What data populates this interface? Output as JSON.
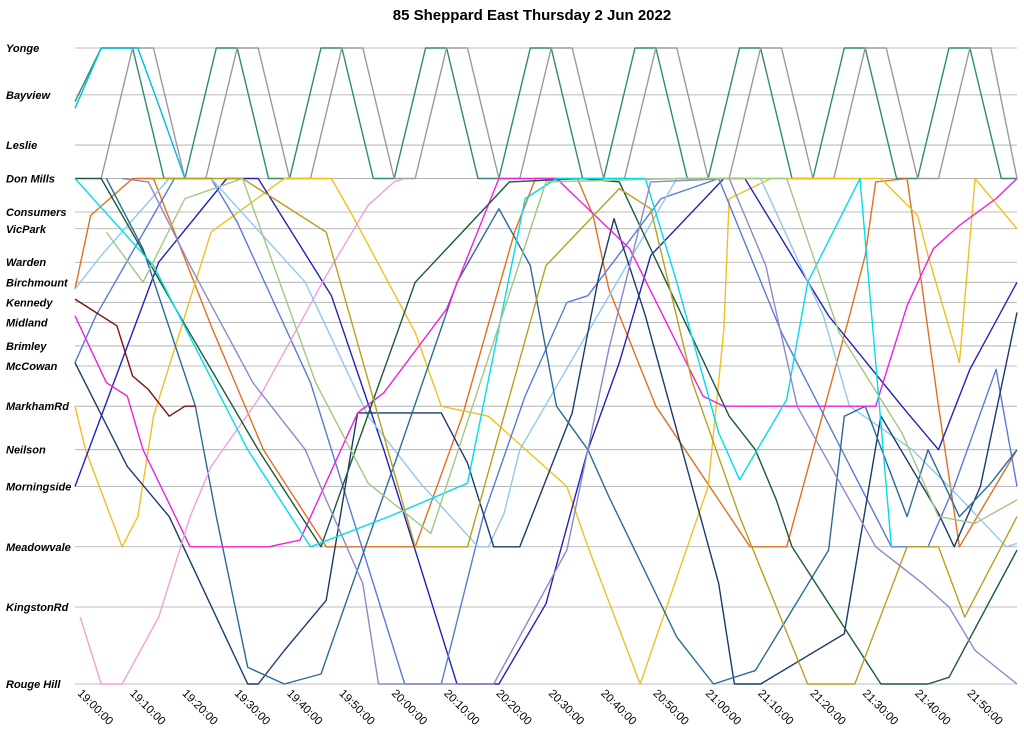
{
  "chart_data": {
    "type": "line",
    "title": "85 Sheppard East Thursday 2 Jun 2022",
    "xlabel": "",
    "ylabel": "",
    "x_range_minutes": [
      1140,
      1320
    ],
    "x_ticks": [
      "19:00:00",
      "19:10:00",
      "19:20:00",
      "19:30:00",
      "19:40:00",
      "19:50:00",
      "20:00:00",
      "20:10:00",
      "20:20:00",
      "20:30:00",
      "20:40:00",
      "20:50:00",
      "21:00:00",
      "21:10:00",
      "21:20:00",
      "21:30:00",
      "21:40:00",
      "21:50:00"
    ],
    "stops": [
      "Yonge",
      "Bayview",
      "Leslie",
      "Don Mills",
      "Consumers",
      "VicPark",
      "Warden",
      "Birchmount",
      "Kennedy",
      "Midland",
      "Brimley",
      "McCowan",
      "MarkhamRd",
      "Neilson",
      "Morningside",
      "Meadowvale",
      "KingstonRd",
      "Rouge Hill"
    ],
    "stop_km": [
      0,
      1.4,
      2.9,
      3.9,
      4.9,
      5.4,
      6.4,
      7.0,
      7.6,
      8.2,
      8.9,
      9.5,
      10.7,
      12.0,
      13.1,
      14.9,
      16.7,
      19.0
    ],
    "grid": true,
    "legend": "none",
    "series": [
      {
        "color": "#2e8b6e",
        "x": [
          1139,
          1145,
          1151,
          1157,
          1161,
          1167,
          1171,
          1177,
          1181,
          1187,
          1191,
          1197,
          1201,
          1207,
          1211,
          1217,
          1221,
          1227,
          1231,
          1237,
          1241,
          1247,
          1251,
          1257,
          1261,
          1267,
          1271,
          1277,
          1281,
          1287,
          1291,
          1297,
          1301,
          1307,
          1311,
          1317,
          1321
        ],
        "y": [
          1.6,
          0,
          0,
          3.9,
          3.9,
          0,
          0,
          3.9,
          3.9,
          0,
          0,
          3.9,
          3.9,
          0,
          0,
          3.9,
          3.9,
          0,
          0,
          3.9,
          3.9,
          0,
          0,
          3.9,
          3.9,
          0,
          0,
          3.9,
          3.9,
          0,
          0,
          3.9,
          3.9,
          0,
          0,
          3.9,
          3.9
        ]
      },
      {
        "color": "#9a9a9a",
        "x": [
          1145,
          1151,
          1155,
          1161,
          1165,
          1171,
          1175,
          1181,
          1185,
          1191,
          1195,
          1201,
          1205,
          1211,
          1215,
          1221,
          1225,
          1231,
          1235,
          1241,
          1245,
          1251,
          1255,
          1261,
          1265,
          1271,
          1275,
          1281,
          1285,
          1291,
          1295,
          1301,
          1305,
          1311,
          1315,
          1321
        ],
        "y": [
          3.9,
          0,
          0,
          3.9,
          3.9,
          0,
          0,
          3.9,
          3.9,
          0,
          0,
          3.9,
          3.9,
          0,
          0,
          3.9,
          3.9,
          0,
          0,
          3.9,
          3.9,
          0,
          0,
          3.9,
          3.9,
          0,
          0,
          3.9,
          3.9,
          0,
          0,
          3.9,
          3.9,
          0,
          0,
          3.9
        ]
      },
      {
        "color": "#00bcd8",
        "x": [
          1140,
          1145,
          1152,
          1156,
          1161
        ],
        "y": [
          1.8,
          0,
          0,
          1.7,
          3.9
        ]
      },
      {
        "color": "#e07020",
        "x": [
          1140,
          1143,
          1151,
          1155,
          1166,
          1176,
          1188,
          1205,
          1214,
          1224,
          1228,
          1236,
          1239,
          1242,
          1251,
          1269,
          1276,
          1288,
          1291,
          1293,
          1299,
          1305,
          1309,
          1321
        ],
        "y": [
          7.2,
          5.0,
          3.9,
          3.9,
          8.3,
          12.0,
          14.9,
          14.9,
          11.0,
          5.5,
          3.9,
          3.9,
          5.0,
          7.2,
          10.7,
          14.9,
          14.9,
          8.0,
          6.2,
          4.0,
          3.9,
          10.7,
          14.9,
          12.0
        ]
      },
      {
        "color": "#f0c020",
        "x": [
          1140,
          1142,
          1149,
          1152,
          1155,
          1166,
          1180,
          1189,
          1193,
          1205,
          1210,
          1219,
          1234,
          1238,
          1248,
          1257,
          1261,
          1264,
          1265,
          1273,
          1294,
          1301,
          1303,
          1309,
          1312,
          1321
        ],
        "y": [
          10.7,
          12.0,
          14.9,
          14.0,
          11.0,
          5.5,
          3.9,
          3.9,
          5.0,
          8.5,
          10.7,
          11.0,
          13.1,
          14.9,
          19.0,
          14.9,
          13.1,
          8.4,
          4.5,
          3.9,
          3.9,
          5.0,
          6.2,
          9.4,
          3.9,
          5.4
        ]
      },
      {
        "color": "#2222bb",
        "x": [
          1140,
          1156,
          1169,
          1175,
          1189,
          1199,
          1213,
          1221,
          1230,
          1238,
          1244,
          1250,
          1264,
          1268,
          1284,
          1298,
          1305,
          1311,
          1321
        ],
        "y": [
          13.1,
          6.4,
          3.9,
          3.9,
          7.4,
          12.0,
          19.0,
          19.0,
          16.6,
          12.0,
          9.4,
          6.2,
          3.9,
          3.9,
          8.0,
          10.7,
          12.0,
          9.6,
          7.0
        ]
      },
      {
        "color": "#5a7ad6",
        "x": [
          1140,
          1144,
          1159,
          1166,
          1171,
          1185,
          1203,
          1210,
          1218,
          1226,
          1234,
          1238,
          1252,
          1263,
          1275,
          1296,
          1303,
          1308,
          1316,
          1321
        ],
        "y": [
          9.4,
          8.0,
          3.9,
          3.9,
          5.2,
          10.0,
          19.0,
          19.0,
          14.0,
          10.4,
          7.6,
          7.4,
          4.5,
          3.9,
          8.5,
          14.9,
          14.9,
          13.1,
          9.6,
          13.1
        ]
      },
      {
        "color": "#90c8f0",
        "x": [
          1140,
          1145,
          1158,
          1166,
          1184,
          1196,
          1206,
          1217,
          1219,
          1222,
          1225,
          1248,
          1255,
          1271,
          1283,
          1288,
          1300,
          1307,
          1318,
          1321
        ],
        "y": [
          7.2,
          6.2,
          3.9,
          3.9,
          7.0,
          11.0,
          13.0,
          14.9,
          14.9,
          13.9,
          12.0,
          5.8,
          3.9,
          3.9,
          8.0,
          10.7,
          12.0,
          13.1,
          14.9,
          14.8
        ]
      },
      {
        "color": "#1a3a6e",
        "x": [
          1140,
          1150,
          1158,
          1164,
          1173,
          1175,
          1180,
          1188,
          1194,
          1210,
          1215,
          1220,
          1225,
          1235,
          1240,
          1243,
          1249,
          1263,
          1266,
          1271,
          1287,
          1294,
          1305,
          1308,
          1313,
          1321
        ],
        "y": [
          9.4,
          12.5,
          14.0,
          16.0,
          19.0,
          19.0,
          18.0,
          16.5,
          10.9,
          10.9,
          12.4,
          14.9,
          14.9,
          10.9,
          6.9,
          5.1,
          8.0,
          16.0,
          19.0,
          19.0,
          17.5,
          11.0,
          13.9,
          14.9,
          13.1,
          7.9
        ]
      },
      {
        "color": "#2a6a9a",
        "x": [
          1146,
          1153,
          1163,
          1167,
          1173,
          1180,
          1187,
          1202,
          1213,
          1221,
          1227,
          1232,
          1238,
          1242,
          1255,
          1262,
          1270,
          1284,
          1287,
          1291,
          1299,
          1303,
          1309,
          1315,
          1321
        ],
        "y": [
          3.9,
          6.0,
          10.7,
          14.0,
          18.5,
          19.0,
          18.7,
          12.0,
          7.0,
          4.8,
          6.5,
          10.7,
          12.0,
          13.4,
          17.6,
          19.0,
          18.6,
          15.0,
          11.0,
          10.7,
          14.0,
          12.0,
          14.0,
          13.0,
          12.0
        ]
      },
      {
        "color": "#ee22dd",
        "x": [
          1140,
          1146,
          1150,
          1153,
          1162,
          1166,
          1171,
          1177,
          1183,
          1194,
          1199,
          1211,
          1221,
          1232,
          1246,
          1260,
          1264,
          1270,
          1277,
          1286,
          1293,
          1299,
          1304,
          1309,
          1316,
          1321
        ],
        "y": [
          8.0,
          10.0,
          10.4,
          12.0,
          14.9,
          14.9,
          14.9,
          14.9,
          14.7,
          10.9,
          10.3,
          7.8,
          3.9,
          3.9,
          6.0,
          10.4,
          10.7,
          10.7,
          10.7,
          10.7,
          10.7,
          7.7,
          6.0,
          5.3,
          4.5,
          3.9
        ]
      },
      {
        "color": "#f0a0d8",
        "x": [
          1141,
          1145,
          1149,
          1156,
          1162,
          1166,
          1175,
          1188,
          1196,
          1201,
          1203
        ],
        "y": [
          17.0,
          19.0,
          19.0,
          17.0,
          14.0,
          12.5,
          10.5,
          6.8,
          4.7,
          4.0,
          3.9
        ]
      },
      {
        "color": "#1a5a3a",
        "x": [
          1140,
          1145,
          1160,
          1175,
          1187,
          1205,
          1223,
          1237,
          1244,
          1265,
          1270,
          1274,
          1277,
          1294,
          1303,
          1307,
          1321
        ],
        "y": [
          3.9,
          3.9,
          8.0,
          12.0,
          14.9,
          7.0,
          4.0,
          3.9,
          4.0,
          11.0,
          12.0,
          13.5,
          14.9,
          19.0,
          19.0,
          18.8,
          15.0
        ]
      },
      {
        "color": "#00ddee",
        "x": [
          1140,
          1155,
          1173,
          1185,
          1200,
          1215,
          1226,
          1232,
          1249,
          1255,
          1263,
          1267,
          1276,
          1280,
          1290,
          1296
        ],
        "y": [
          3.9,
          6.5,
          12.0,
          14.9,
          14.0,
          13.0,
          4.5,
          3.9,
          3.9,
          7.0,
          11.5,
          12.9,
          10.5,
          7.0,
          3.9,
          14.9
        ]
      },
      {
        "color": "#b8a020",
        "x": [
          1155,
          1172,
          1188,
          1205,
          1215,
          1230,
          1244,
          1250,
          1258,
          1267,
          1280,
          1289,
          1299,
          1305,
          1310,
          1321
        ],
        "y": [
          3.9,
          3.9,
          5.5,
          14.9,
          14.9,
          6.5,
          4.2,
          4.8,
          10.0,
          14.0,
          19.0,
          19.0,
          14.9,
          14.9,
          17.0,
          14.0
        ]
      },
      {
        "color": "#8a8ac8",
        "x": [
          1149,
          1154,
          1162,
          1174,
          1184,
          1188,
          1195,
          1198,
          1220,
          1234,
          1242,
          1250,
          1265,
          1272,
          1278,
          1293,
          1302,
          1307,
          1312,
          1321
        ],
        "y": [
          3.9,
          4.0,
          6.5,
          10.0,
          12.0,
          13.5,
          16.0,
          19.0,
          19.0,
          15.0,
          9.0,
          4.0,
          3.9,
          6.5,
          10.7,
          14.9,
          16.0,
          16.7,
          18.0,
          19.0
        ]
      },
      {
        "color": "#a0c880",
        "x": [
          1146,
          1153,
          1161,
          1172,
          1186,
          1196,
          1208,
          1230,
          1256,
          1276,
          1286,
          1298,
          1305,
          1312,
          1321
        ],
        "y": [
          5.5,
          7.0,
          4.5,
          3.9,
          10.0,
          13.0,
          14.5,
          4.0,
          3.9,
          3.9,
          8.5,
          11.5,
          14.0,
          14.2,
          13.5
        ]
      },
      {
        "color": "#7a1010",
        "x": [
          1140,
          1143,
          1148,
          1151,
          1154,
          1158,
          1161,
          1163
        ],
        "y": [
          7.5,
          7.8,
          8.3,
          9.8,
          10.2,
          11.0,
          10.7,
          10.7
        ]
      }
    ]
  }
}
